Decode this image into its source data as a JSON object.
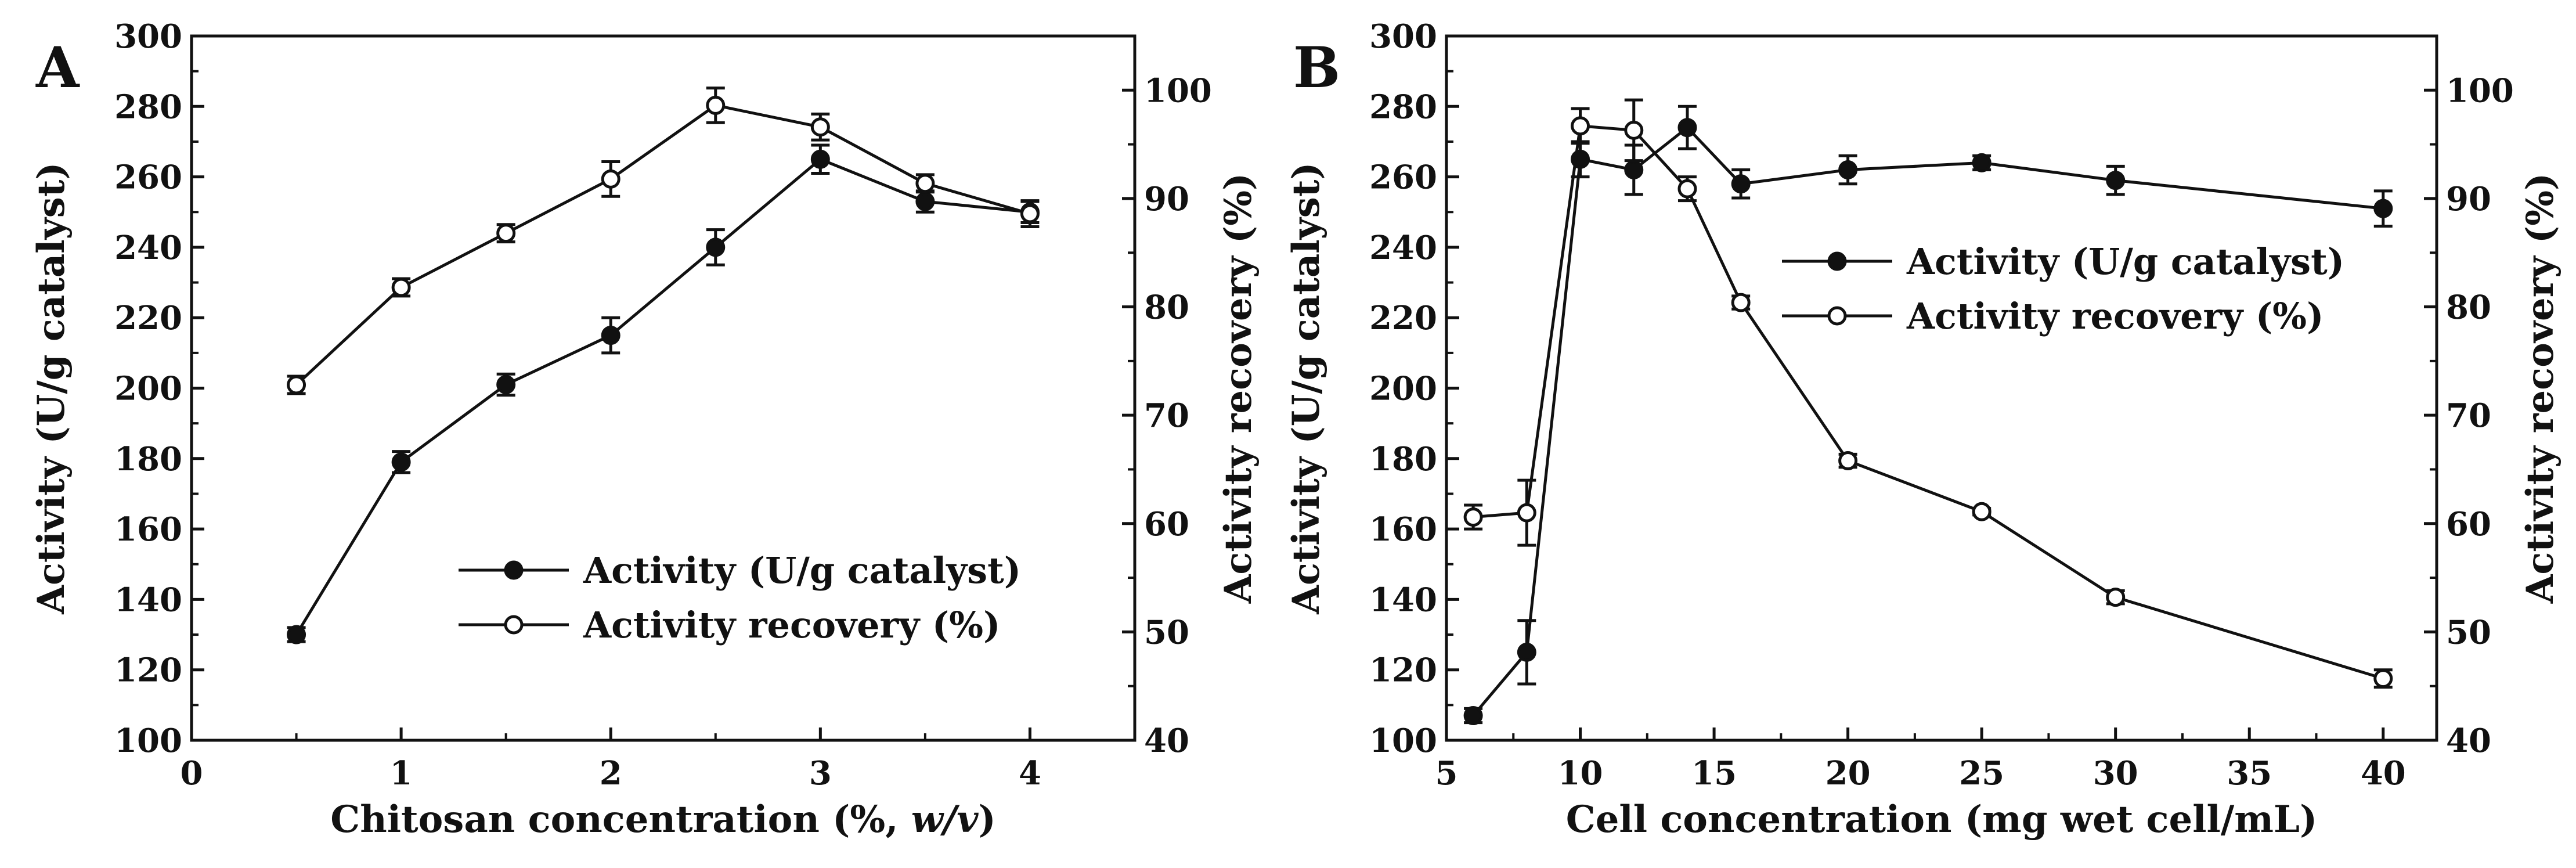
{
  "figure": {
    "panels": [
      "A",
      "B"
    ]
  },
  "chart_data": [
    {
      "type": "line",
      "panel": "A",
      "xlabel_parts": [
        "Chitosan concentration (%, ",
        "w/v",
        ")"
      ],
      "xlabel": "Chitosan concentration (%, w/v)",
      "ylabel": "Activity (U/g catalyst)",
      "y2label": "Activity recovery (%)",
      "xlim": [
        0,
        4.5
      ],
      "ylim": [
        100,
        300
      ],
      "y2lim": [
        40,
        105
      ],
      "xticks": [
        0,
        1,
        2,
        3,
        4
      ],
      "yticks": [
        100,
        120,
        140,
        160,
        180,
        200,
        220,
        240,
        260,
        280,
        300
      ],
      "y2ticks": [
        40,
        50,
        60,
        70,
        80,
        90,
        100
      ],
      "legend_position": "center-right",
      "series": [
        {
          "name": "Activity (U/g catalyst)",
          "axis": "left",
          "marker": "filled-circle",
          "x": [
            0.5,
            1.0,
            1.5,
            2.0,
            2.5,
            3.0,
            3.5,
            4.0
          ],
          "values": [
            130,
            179,
            201,
            215,
            240,
            265,
            253,
            250
          ],
          "errors": [
            2,
            3,
            3,
            5,
            5,
            4,
            3,
            3
          ]
        },
        {
          "name": "Activity recovery (%)",
          "axis": "right",
          "marker": "open-circle",
          "x": [
            0.5,
            1.0,
            1.5,
            2.0,
            2.5,
            3.0,
            3.5,
            4.0
          ],
          "values": [
            72.8,
            81.8,
            86.8,
            91.8,
            98.6,
            96.6,
            91.4,
            88.6
          ],
          "errors": [
            0.8,
            0.8,
            0.8,
            1.6,
            1.6,
            1.2,
            0.8,
            1.2
          ]
        }
      ]
    },
    {
      "type": "line",
      "panel": "B",
      "xlabel": "Cell concentration (mg wet cell/mL)",
      "ylabel": "Activity (U/g catalyst)",
      "y2label": "Activity recovery (%)",
      "xlim": [
        5,
        42
      ],
      "ylim": [
        100,
        300
      ],
      "y2lim": [
        40,
        105
      ],
      "xticks": [
        5,
        10,
        15,
        20,
        25,
        30,
        35,
        40
      ],
      "yticks": [
        100,
        120,
        140,
        160,
        180,
        200,
        220,
        240,
        260,
        280,
        300
      ],
      "y2ticks": [
        40,
        50,
        60,
        70,
        80,
        90,
        100
      ],
      "legend_position": "upper-right",
      "series": [
        {
          "name": "Activity (U/g catalyst)",
          "axis": "left",
          "marker": "filled-circle",
          "x": [
            6,
            8,
            10,
            12,
            14,
            16,
            20,
            25,
            30,
            40
          ],
          "values": [
            107,
            125,
            265,
            262,
            274,
            258,
            262,
            264,
            259,
            251
          ],
          "errors": [
            2,
            9,
            5,
            7,
            6,
            4,
            4,
            2,
            4,
            5
          ]
        },
        {
          "name": "Activity recovery (%)",
          "axis": "right",
          "marker": "open-circle",
          "x": [
            6,
            8,
            10,
            12,
            14,
            16,
            20,
            25,
            30,
            40
          ],
          "values": [
            60.6,
            61.0,
            96.7,
            96.3,
            90.9,
            80.4,
            65.8,
            61.1,
            53.2,
            45.7
          ],
          "errors": [
            1.1,
            3.0,
            1.6,
            2.8,
            1.1,
            0.6,
            0.6,
            0.3,
            0.6,
            0.8
          ]
        }
      ]
    }
  ]
}
